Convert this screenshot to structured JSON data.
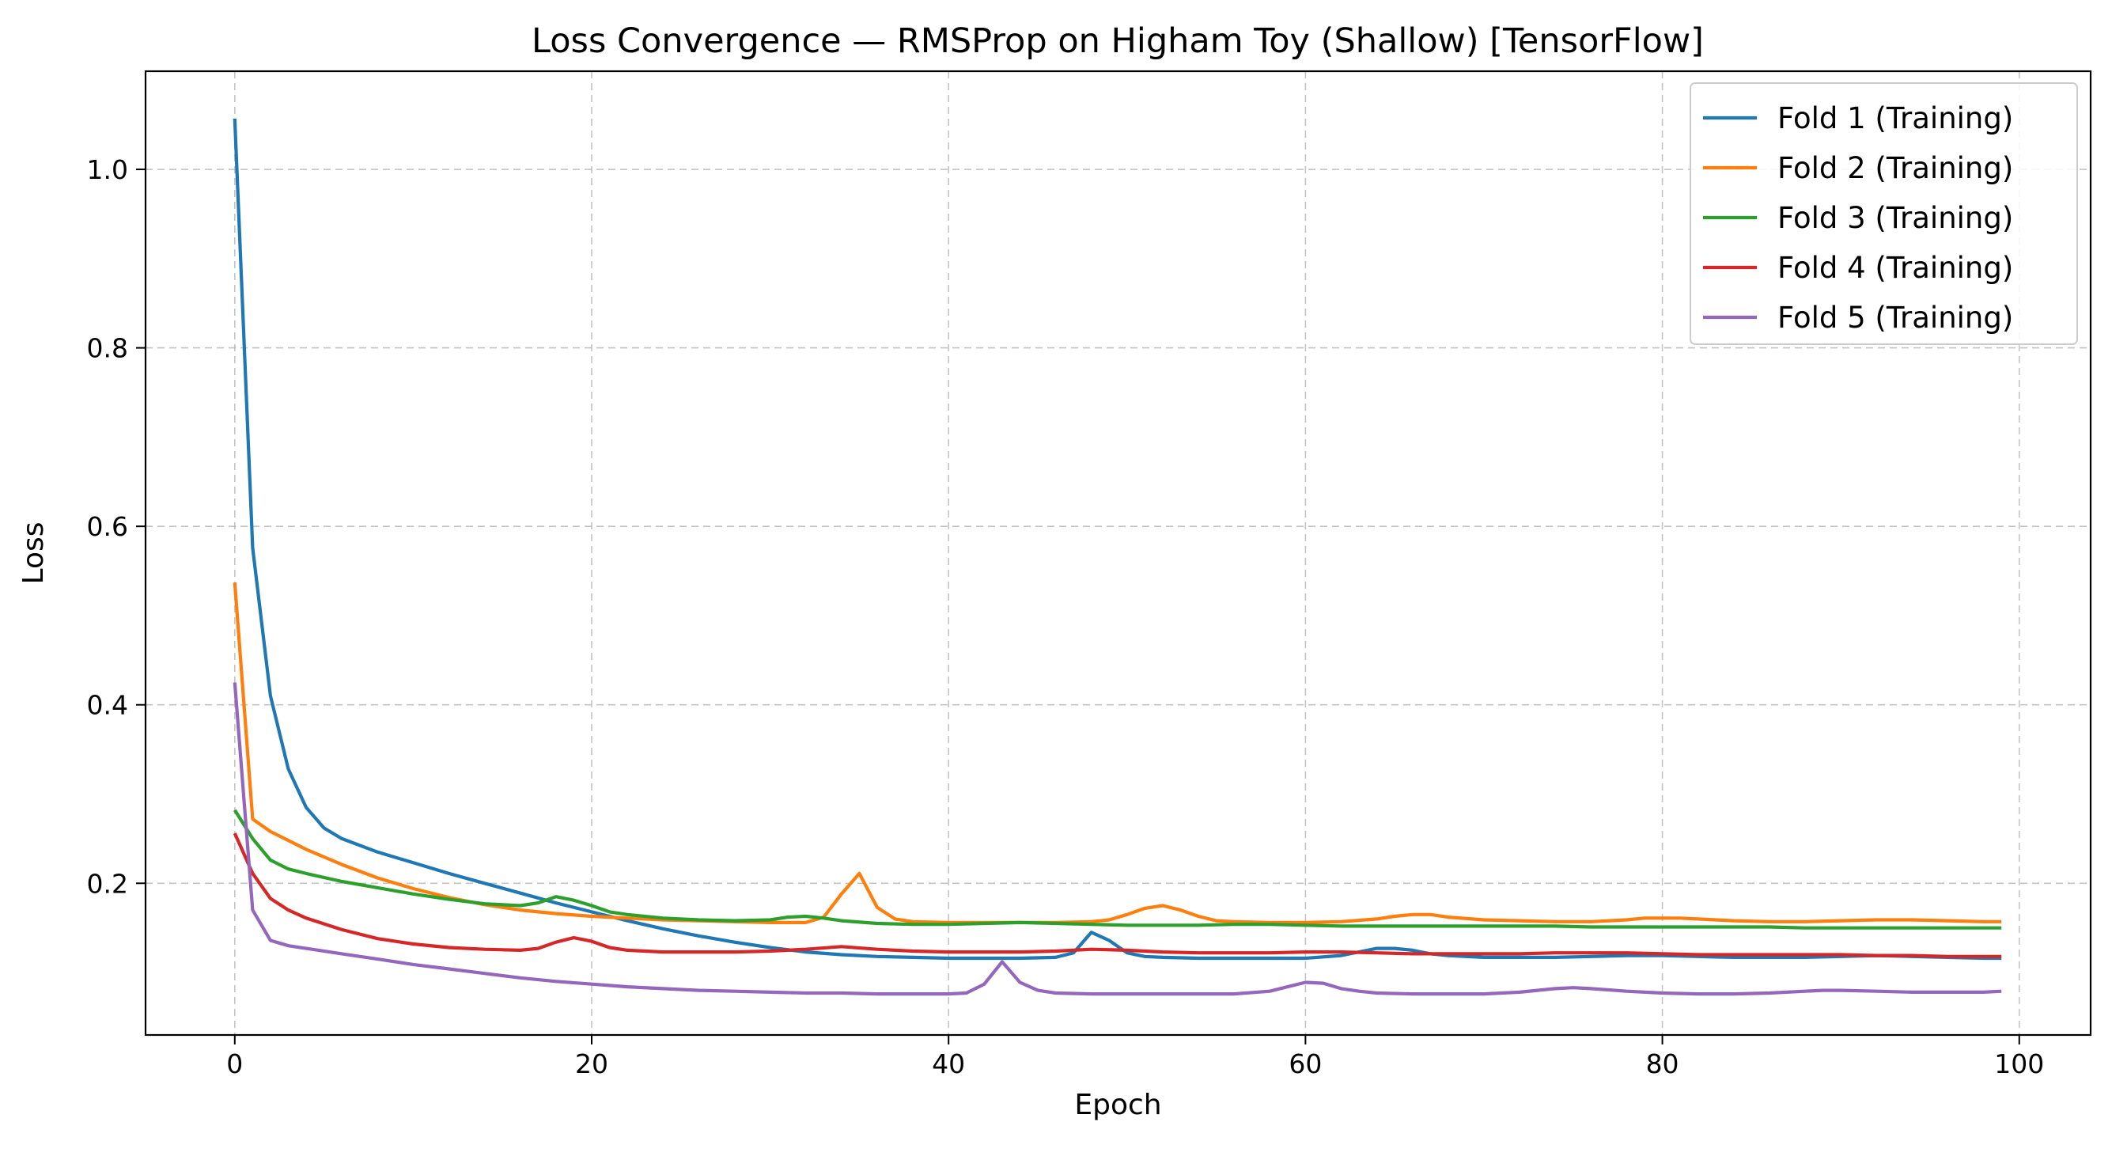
{
  "chart_data": {
    "type": "line",
    "title": "Loss Convergence — RMSProp on Higham Toy (Shallow) [TensorFlow]",
    "xlabel": "Epoch",
    "ylabel": "Loss",
    "xlim": [
      -5,
      104
    ],
    "ylim": [
      0.03,
      1.11
    ],
    "xticks": [
      0,
      20,
      40,
      60,
      80,
      100
    ],
    "yticks": [
      0.2,
      0.4,
      0.6,
      0.8,
      1.0
    ],
    "xtick_labels": [
      "0",
      "20",
      "40",
      "60",
      "80",
      "100"
    ],
    "ytick_labels": [
      "0.2",
      "0.4",
      "0.6",
      "0.8",
      "1.0"
    ],
    "grid": true,
    "legend_position": "top-right",
    "series": [
      {
        "name": "Fold 1 (Training)",
        "color": "#1f77b4",
        "points": [
          [
            0,
            1.057
          ],
          [
            1,
            0.576
          ],
          [
            2,
            0.41
          ],
          [
            3,
            0.328
          ],
          [
            4,
            0.285
          ],
          [
            5,
            0.262
          ],
          [
            6,
            0.25
          ],
          [
            8,
            0.235
          ],
          [
            10,
            0.223
          ],
          [
            12,
            0.211
          ],
          [
            14,
            0.2
          ],
          [
            16,
            0.189
          ],
          [
            18,
            0.178
          ],
          [
            20,
            0.168
          ],
          [
            22,
            0.158
          ],
          [
            24,
            0.149
          ],
          [
            26,
            0.141
          ],
          [
            28,
            0.134
          ],
          [
            30,
            0.128
          ],
          [
            32,
            0.123
          ],
          [
            34,
            0.12
          ],
          [
            36,
            0.118
          ],
          [
            38,
            0.117
          ],
          [
            40,
            0.116
          ],
          [
            42,
            0.116
          ],
          [
            44,
            0.116
          ],
          [
            46,
            0.117
          ],
          [
            47,
            0.122
          ],
          [
            48,
            0.145
          ],
          [
            49,
            0.136
          ],
          [
            50,
            0.122
          ],
          [
            51,
            0.118
          ],
          [
            52,
            0.117
          ],
          [
            54,
            0.116
          ],
          [
            56,
            0.116
          ],
          [
            58,
            0.116
          ],
          [
            60,
            0.116
          ],
          [
            62,
            0.119
          ],
          [
            63,
            0.123
          ],
          [
            64,
            0.127
          ],
          [
            65,
            0.127
          ],
          [
            66,
            0.125
          ],
          [
            67,
            0.121
          ],
          [
            68,
            0.119
          ],
          [
            70,
            0.117
          ],
          [
            72,
            0.117
          ],
          [
            74,
            0.117
          ],
          [
            76,
            0.118
          ],
          [
            78,
            0.119
          ],
          [
            80,
            0.119
          ],
          [
            82,
            0.118
          ],
          [
            84,
            0.117
          ],
          [
            86,
            0.117
          ],
          [
            88,
            0.117
          ],
          [
            90,
            0.118
          ],
          [
            92,
            0.119
          ],
          [
            94,
            0.118
          ],
          [
            96,
            0.117
          ],
          [
            98,
            0.116
          ],
          [
            99,
            0.116
          ]
        ]
      },
      {
        "name": "Fold 2 (Training)",
        "color": "#ff7f0e",
        "points": [
          [
            0,
            0.537
          ],
          [
            1,
            0.272
          ],
          [
            2,
            0.258
          ],
          [
            4,
            0.238
          ],
          [
            6,
            0.221
          ],
          [
            8,
            0.206
          ],
          [
            10,
            0.194
          ],
          [
            12,
            0.184
          ],
          [
            14,
            0.176
          ],
          [
            16,
            0.17
          ],
          [
            18,
            0.166
          ],
          [
            20,
            0.163
          ],
          [
            22,
            0.161
          ],
          [
            24,
            0.159
          ],
          [
            26,
            0.158
          ],
          [
            28,
            0.157
          ],
          [
            30,
            0.156
          ],
          [
            32,
            0.156
          ],
          [
            33,
            0.162
          ],
          [
            34,
            0.188
          ],
          [
            35,
            0.211
          ],
          [
            36,
            0.173
          ],
          [
            37,
            0.16
          ],
          [
            38,
            0.157
          ],
          [
            40,
            0.156
          ],
          [
            42,
            0.156
          ],
          [
            44,
            0.156
          ],
          [
            46,
            0.156
          ],
          [
            48,
            0.157
          ],
          [
            49,
            0.159
          ],
          [
            50,
            0.165
          ],
          [
            51,
            0.172
          ],
          [
            52,
            0.175
          ],
          [
            53,
            0.17
          ],
          [
            54,
            0.163
          ],
          [
            55,
            0.158
          ],
          [
            56,
            0.157
          ],
          [
            58,
            0.156
          ],
          [
            60,
            0.156
          ],
          [
            62,
            0.157
          ],
          [
            64,
            0.16
          ],
          [
            65,
            0.163
          ],
          [
            66,
            0.165
          ],
          [
            67,
            0.165
          ],
          [
            68,
            0.162
          ],
          [
            70,
            0.159
          ],
          [
            72,
            0.158
          ],
          [
            74,
            0.157
          ],
          [
            76,
            0.157
          ],
          [
            78,
            0.159
          ],
          [
            79,
            0.161
          ],
          [
            80,
            0.161
          ],
          [
            81,
            0.161
          ],
          [
            82,
            0.16
          ],
          [
            84,
            0.158
          ],
          [
            86,
            0.157
          ],
          [
            88,
            0.157
          ],
          [
            90,
            0.158
          ],
          [
            92,
            0.159
          ],
          [
            94,
            0.159
          ],
          [
            96,
            0.158
          ],
          [
            98,
            0.157
          ],
          [
            99,
            0.157
          ]
        ]
      },
      {
        "name": "Fold 3 (Training)",
        "color": "#2ca02c",
        "points": [
          [
            0,
            0.282
          ],
          [
            1,
            0.25
          ],
          [
            2,
            0.226
          ],
          [
            3,
            0.216
          ],
          [
            4,
            0.211
          ],
          [
            6,
            0.202
          ],
          [
            8,
            0.195
          ],
          [
            10,
            0.188
          ],
          [
            12,
            0.182
          ],
          [
            14,
            0.177
          ],
          [
            16,
            0.175
          ],
          [
            17,
            0.178
          ],
          [
            18,
            0.185
          ],
          [
            19,
            0.181
          ],
          [
            20,
            0.175
          ],
          [
            21,
            0.168
          ],
          [
            22,
            0.165
          ],
          [
            24,
            0.161
          ],
          [
            26,
            0.159
          ],
          [
            28,
            0.158
          ],
          [
            30,
            0.159
          ],
          [
            31,
            0.162
          ],
          [
            32,
            0.163
          ],
          [
            33,
            0.161
          ],
          [
            34,
            0.158
          ],
          [
            36,
            0.155
          ],
          [
            38,
            0.154
          ],
          [
            40,
            0.154
          ],
          [
            42,
            0.155
          ],
          [
            44,
            0.156
          ],
          [
            46,
            0.155
          ],
          [
            48,
            0.154
          ],
          [
            50,
            0.153
          ],
          [
            52,
            0.153
          ],
          [
            54,
            0.153
          ],
          [
            56,
            0.154
          ],
          [
            58,
            0.154
          ],
          [
            60,
            0.153
          ],
          [
            62,
            0.152
          ],
          [
            64,
            0.152
          ],
          [
            66,
            0.152
          ],
          [
            68,
            0.152
          ],
          [
            70,
            0.152
          ],
          [
            72,
            0.152
          ],
          [
            74,
            0.152
          ],
          [
            76,
            0.151
          ],
          [
            78,
            0.151
          ],
          [
            80,
            0.151
          ],
          [
            82,
            0.151
          ],
          [
            84,
            0.151
          ],
          [
            86,
            0.151
          ],
          [
            88,
            0.15
          ],
          [
            90,
            0.15
          ],
          [
            92,
            0.15
          ],
          [
            94,
            0.15
          ],
          [
            96,
            0.15
          ],
          [
            98,
            0.15
          ],
          [
            99,
            0.15
          ]
        ]
      },
      {
        "name": "Fold 4 (Training)",
        "color": "#d62728",
        "points": [
          [
            0,
            0.256
          ],
          [
            1,
            0.211
          ],
          [
            2,
            0.183
          ],
          [
            3,
            0.17
          ],
          [
            4,
            0.161
          ],
          [
            6,
            0.148
          ],
          [
            8,
            0.138
          ],
          [
            10,
            0.132
          ],
          [
            12,
            0.128
          ],
          [
            14,
            0.126
          ],
          [
            16,
            0.125
          ],
          [
            17,
            0.127
          ],
          [
            18,
            0.134
          ],
          [
            19,
            0.139
          ],
          [
            20,
            0.135
          ],
          [
            21,
            0.128
          ],
          [
            22,
            0.125
          ],
          [
            24,
            0.123
          ],
          [
            26,
            0.123
          ],
          [
            28,
            0.123
          ],
          [
            30,
            0.124
          ],
          [
            32,
            0.126
          ],
          [
            34,
            0.129
          ],
          [
            36,
            0.126
          ],
          [
            38,
            0.124
          ],
          [
            40,
            0.123
          ],
          [
            42,
            0.123
          ],
          [
            44,
            0.123
          ],
          [
            46,
            0.124
          ],
          [
            48,
            0.126
          ],
          [
            50,
            0.125
          ],
          [
            52,
            0.123
          ],
          [
            54,
            0.122
          ],
          [
            56,
            0.122
          ],
          [
            58,
            0.122
          ],
          [
            60,
            0.123
          ],
          [
            62,
            0.123
          ],
          [
            64,
            0.122
          ],
          [
            66,
            0.121
          ],
          [
            68,
            0.121
          ],
          [
            70,
            0.121
          ],
          [
            72,
            0.121
          ],
          [
            74,
            0.122
          ],
          [
            76,
            0.122
          ],
          [
            78,
            0.122
          ],
          [
            80,
            0.121
          ],
          [
            82,
            0.12
          ],
          [
            84,
            0.12
          ],
          [
            86,
            0.12
          ],
          [
            88,
            0.12
          ],
          [
            90,
            0.12
          ],
          [
            92,
            0.119
          ],
          [
            94,
            0.119
          ],
          [
            96,
            0.118
          ],
          [
            98,
            0.118
          ],
          [
            99,
            0.118
          ]
        ]
      },
      {
        "name": "Fold 5 (Training)",
        "color": "#9467bd",
        "points": [
          [
            0,
            0.425
          ],
          [
            1,
            0.17
          ],
          [
            2,
            0.136
          ],
          [
            3,
            0.13
          ],
          [
            4,
            0.127
          ],
          [
            6,
            0.121
          ],
          [
            8,
            0.115
          ],
          [
            10,
            0.109
          ],
          [
            12,
            0.104
          ],
          [
            14,
            0.099
          ],
          [
            16,
            0.094
          ],
          [
            18,
            0.09
          ],
          [
            20,
            0.087
          ],
          [
            22,
            0.084
          ],
          [
            24,
            0.082
          ],
          [
            26,
            0.08
          ],
          [
            28,
            0.079
          ],
          [
            30,
            0.078
          ],
          [
            32,
            0.077
          ],
          [
            34,
            0.077
          ],
          [
            36,
            0.076
          ],
          [
            38,
            0.076
          ],
          [
            40,
            0.076
          ],
          [
            41,
            0.077
          ],
          [
            42,
            0.087
          ],
          [
            43,
            0.112
          ],
          [
            44,
            0.089
          ],
          [
            45,
            0.08
          ],
          [
            46,
            0.077
          ],
          [
            48,
            0.076
          ],
          [
            50,
            0.076
          ],
          [
            52,
            0.076
          ],
          [
            54,
            0.076
          ],
          [
            56,
            0.076
          ],
          [
            58,
            0.079
          ],
          [
            59,
            0.084
          ],
          [
            60,
            0.089
          ],
          [
            61,
            0.088
          ],
          [
            62,
            0.082
          ],
          [
            63,
            0.079
          ],
          [
            64,
            0.077
          ],
          [
            66,
            0.076
          ],
          [
            68,
            0.076
          ],
          [
            70,
            0.076
          ],
          [
            72,
            0.078
          ],
          [
            74,
            0.082
          ],
          [
            75,
            0.083
          ],
          [
            76,
            0.082
          ],
          [
            78,
            0.079
          ],
          [
            80,
            0.077
          ],
          [
            82,
            0.076
          ],
          [
            84,
            0.076
          ],
          [
            86,
            0.077
          ],
          [
            88,
            0.079
          ],
          [
            89,
            0.08
          ],
          [
            90,
            0.08
          ],
          [
            92,
            0.079
          ],
          [
            94,
            0.078
          ],
          [
            96,
            0.078
          ],
          [
            98,
            0.078
          ],
          [
            99,
            0.079
          ]
        ]
      }
    ]
  }
}
